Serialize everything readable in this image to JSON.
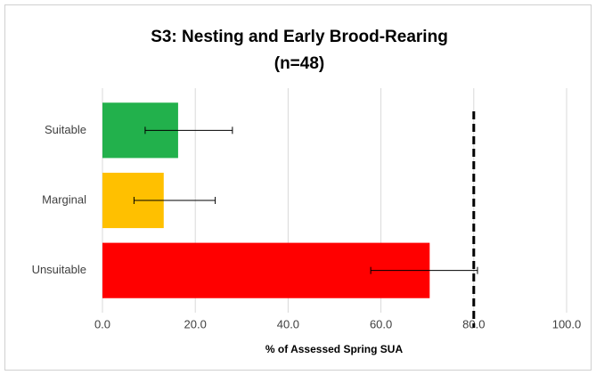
{
  "chart_data": {
    "type": "barh",
    "title": [
      "S3: Nesting and Early Brood-Rearing",
      "(n=48)"
    ],
    "x_label": "% of Assessed Spring SUA",
    "categories": [
      "Suitable",
      "Marginal",
      "Unsuitable"
    ],
    "values": [
      16.3,
      13.2,
      70.5
    ],
    "error_low": [
      9.2,
      6.8,
      57.8
    ],
    "error_high": [
      28.0,
      24.3,
      80.8
    ],
    "colors": [
      "#22b14c",
      "#ffc000",
      "#ff0000"
    ],
    "reference_line": 80,
    "xlim": [
      0,
      100
    ],
    "xticks": [
      {
        "value": 0,
        "label": "0.0"
      },
      {
        "value": 20,
        "label": "20.0"
      },
      {
        "value": 40,
        "label": "40.0"
      },
      {
        "value": 60,
        "label": "60.0"
      },
      {
        "value": 80,
        "label": "80.0"
      },
      {
        "value": 100,
        "label": "100.0"
      }
    ],
    "grid": true
  }
}
